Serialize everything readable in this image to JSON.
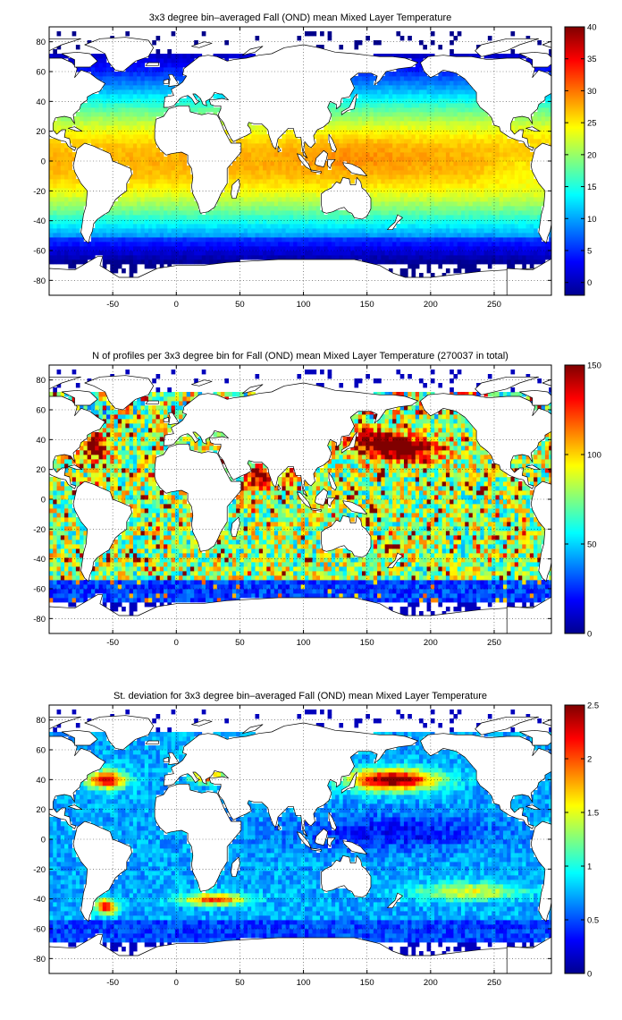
{
  "chart_data": [
    {
      "type": "heatmap",
      "title": "3x3 degree bin–averaged Fall (OND) mean Mixed Layer Temperature",
      "x_ticks": [
        "-50",
        "0",
        "50",
        "100",
        "150",
        "200",
        "250"
      ],
      "x_values": [
        -50,
        0,
        50,
        100,
        150,
        200,
        250
      ],
      "y_ticks": [
        "80",
        "60",
        "40",
        "20",
        "0",
        "-20",
        "-40",
        "-60",
        "-80"
      ],
      "y_values": [
        80,
        60,
        40,
        20,
        0,
        -20,
        -40,
        -60,
        -80
      ],
      "xlim": [
        -100,
        295
      ],
      "ylim": [
        -90,
        90
      ],
      "grid": true,
      "bin_size_deg": 3,
      "field": "temperature",
      "colorbar": {
        "min": -2,
        "max": 40,
        "ticks": [
          "40",
          "35",
          "30",
          "25",
          "20",
          "15",
          "10",
          "5",
          "0"
        ],
        "tick_values": [
          40,
          35,
          30,
          25,
          20,
          15,
          10,
          5,
          0
        ],
        "colormap": "jet"
      }
    },
    {
      "type": "heatmap",
      "title": "N of profiles per 3x3 degree bin for Fall (OND) mean Mixed Layer Temperature  (270037 in total)",
      "x_ticks": [
        "-50",
        "0",
        "50",
        "100",
        "150",
        "200",
        "250"
      ],
      "x_values": [
        -50,
        0,
        50,
        100,
        150,
        200,
        250
      ],
      "y_ticks": [
        "80",
        "60",
        "40",
        "20",
        "0",
        "-20",
        "-40",
        "-60",
        "-80"
      ],
      "y_values": [
        80,
        60,
        40,
        20,
        0,
        -20,
        -40,
        -60,
        -80
      ],
      "xlim": [
        -100,
        295
      ],
      "ylim": [
        -90,
        90
      ],
      "grid": true,
      "bin_size_deg": 3,
      "field": "count",
      "colorbar": {
        "min": 0,
        "max": 150,
        "ticks": [
          "150",
          "100",
          "50",
          "0"
        ],
        "tick_values": [
          150,
          100,
          50,
          0
        ],
        "colormap": "jet"
      }
    },
    {
      "type": "heatmap",
      "title": "St. deviation for 3x3 degree bin–averaged Fall (OND) mean Mixed Layer Temperature",
      "x_ticks": [
        "-50",
        "0",
        "50",
        "100",
        "150",
        "200",
        "250"
      ],
      "x_values": [
        -50,
        0,
        50,
        100,
        150,
        200,
        250
      ],
      "y_ticks": [
        "80",
        "60",
        "40",
        "20",
        "0",
        "-20",
        "-40",
        "-60",
        "-80"
      ],
      "y_values": [
        80,
        60,
        40,
        20,
        0,
        -20,
        -40,
        -60,
        -80
      ],
      "xlim": [
        -100,
        295
      ],
      "ylim": [
        -90,
        90
      ],
      "grid": true,
      "bin_size_deg": 3,
      "field": "stdev",
      "colorbar": {
        "min": 0,
        "max": 2.5,
        "ticks": [
          "2.5",
          "2",
          "1.5",
          "1",
          "0.5",
          "0"
        ],
        "tick_values": [
          2.5,
          2,
          1.5,
          1,
          0.5,
          0
        ],
        "colormap": "jet"
      }
    }
  ]
}
